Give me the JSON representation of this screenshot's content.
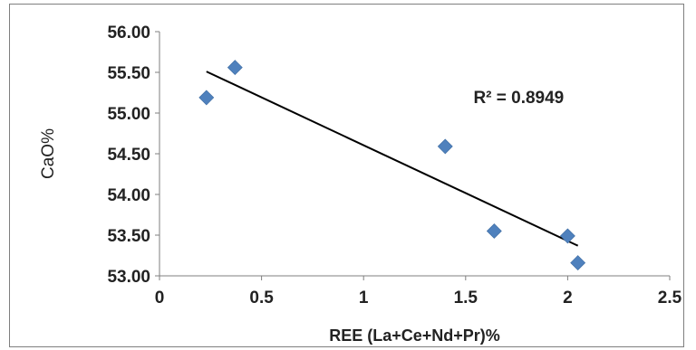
{
  "chart_data": {
    "type": "scatter",
    "xlabel": "REE (La+Ce+Nd+Pr)%",
    "ylabel": "CaO%",
    "xlim": [
      0,
      2.5
    ],
    "ylim": [
      53.0,
      56.0
    ],
    "x_ticks": [
      "0",
      "0.5",
      "1",
      "1.5",
      "2",
      "2.5"
    ],
    "y_ticks": [
      "53.00",
      "53.50",
      "54.00",
      "54.50",
      "55.00",
      "55.50",
      "56.00"
    ],
    "grid": false,
    "legend": "none",
    "series": [
      {
        "marker": "diamond",
        "color": "#4f81bd",
        "points": [
          {
            "x": 0.23,
            "y": 55.19
          },
          {
            "x": 0.37,
            "y": 55.56
          },
          {
            "x": 1.4,
            "y": 54.59
          },
          {
            "x": 1.64,
            "y": 53.55
          },
          {
            "x": 2.0,
            "y": 53.49
          },
          {
            "x": 2.05,
            "y": 53.16
          }
        ]
      }
    ],
    "trendline": {
      "type": "linear",
      "x_start": 0.23,
      "y_start": 55.51,
      "x_end": 2.05,
      "y_end": 53.37,
      "color": "#000000"
    },
    "annotations": [
      {
        "text": "R² = 0.8949",
        "x": 1.76,
        "y": 55.12
      }
    ]
  }
}
